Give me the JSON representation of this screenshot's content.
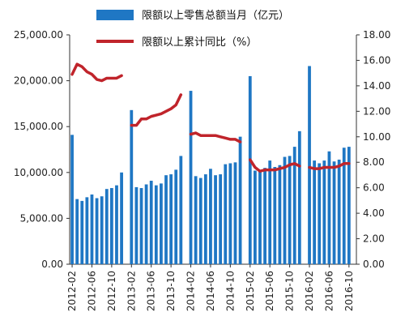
{
  "chart_data": {
    "type": "bar",
    "legend": {
      "placement": "top-center"
    },
    "grid": false,
    "colors": {
      "bar": "#1f77c4",
      "line": "#c0242b",
      "axis": "#333333"
    },
    "axes": {
      "left": {
        "ylim": [
          0,
          25000
        ],
        "ticks": [
          "0.00",
          "5,000.00",
          "10,000.00",
          "15,000.00",
          "20,000.00",
          "25,000.00"
        ]
      },
      "right": {
        "ylim": [
          0,
          18
        ],
        "ticks": [
          "0.00",
          "2.00",
          "4.00",
          "6.00",
          "8.00",
          "10.00",
          "12.00",
          "14.00",
          "16.00",
          "18.00"
        ]
      }
    },
    "x_tick_labels": [
      "2012-02",
      "2012-06",
      "2012-10",
      "2013-02",
      "2013-06",
      "2013-10",
      "2014-02",
      "2014-06",
      "2014-10",
      "2015-02",
      "2015-06",
      "2015-10",
      "2016-02",
      "2016-06",
      "2016-10"
    ],
    "categories": [
      "2012-02",
      "2012-03",
      "2012-04",
      "2012-05",
      "2012-06",
      "2012-07",
      "2012-08",
      "2012-09",
      "2012-10",
      "2012-11",
      "2012-12",
      "2013-01",
      "2013-02",
      "2013-03",
      "2013-04",
      "2013-05",
      "2013-06",
      "2013-07",
      "2013-08",
      "2013-09",
      "2013-10",
      "2013-11",
      "2013-12",
      "2014-01",
      "2014-02",
      "2014-03",
      "2014-04",
      "2014-05",
      "2014-06",
      "2014-07",
      "2014-08",
      "2014-09",
      "2014-10",
      "2014-11",
      "2014-12",
      "2015-01",
      "2015-02",
      "2015-03",
      "2015-04",
      "2015-05",
      "2015-06",
      "2015-07",
      "2015-08",
      "2015-09",
      "2015-10",
      "2015-11",
      "2015-12",
      "2016-01",
      "2016-02",
      "2016-03",
      "2016-04",
      "2016-05",
      "2016-06",
      "2016-07",
      "2016-08",
      "2016-09",
      "2016-10",
      "2016-11"
    ],
    "series": [
      {
        "name": "限额以上零售总额当月（亿元）",
        "type": "bar",
        "axis": "left",
        "values": [
          14100,
          7100,
          6900,
          7300,
          7600,
          7200,
          7400,
          8200,
          8300,
          8600,
          10000,
          null,
          16800,
          8400,
          8300,
          8700,
          9100,
          8600,
          8800,
          9700,
          9800,
          10300,
          11800,
          null,
          18900,
          9600,
          9400,
          9800,
          10400,
          9700,
          9800,
          10900,
          11000,
          11100,
          13900,
          null,
          20500,
          10200,
          10100,
          10500,
          11300,
          10600,
          10800,
          11700,
          11800,
          12800,
          14500,
          null,
          21600,
          11300,
          11000,
          11300,
          12300,
          11200,
          11400,
          12700,
          12800,
          null
        ]
      },
      {
        "name": "限额以上累计同比（%）",
        "type": "line",
        "axis": "right",
        "values": [
          14.9,
          15.7,
          15.5,
          15.1,
          14.9,
          14.5,
          14.4,
          14.6,
          14.6,
          14.6,
          14.8,
          null,
          10.9,
          10.9,
          11.4,
          11.4,
          11.6,
          11.7,
          11.8,
          12.0,
          12.2,
          12.5,
          13.3,
          null,
          10.2,
          10.3,
          10.1,
          10.1,
          10.1,
          10.1,
          10.0,
          9.9,
          9.8,
          9.8,
          9.6,
          null,
          8.2,
          7.6,
          7.3,
          7.4,
          7.4,
          7.4,
          7.5,
          7.6,
          7.8,
          7.9,
          7.7,
          null,
          7.6,
          7.5,
          7.5,
          7.6,
          7.6,
          7.6,
          7.7,
          7.9,
          7.9,
          null
        ]
      }
    ]
  }
}
